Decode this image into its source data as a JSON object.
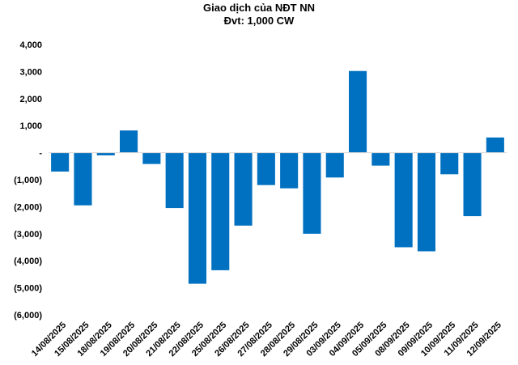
{
  "chart_data": {
    "type": "bar",
    "title": "Giao dịch của NĐT NN",
    "subtitle": "Đvt: 1,000 CW",
    "xlabel": "",
    "ylabel": "",
    "ylim": [
      -6000,
      4000
    ],
    "yticks": [
      4000,
      3000,
      2000,
      1000,
      0,
      -1000,
      -2000,
      -3000,
      -4000,
      -5000,
      -6000
    ],
    "ytick_labels": [
      "4,000",
      "3,000",
      "2,000",
      "1,000",
      "-",
      "(1,000)",
      "(2,000)",
      "(3,000)",
      "(4,000)",
      "(5,000)",
      "(6,000)"
    ],
    "grid": false,
    "legend": "none",
    "bar_color": "#0070C0",
    "categories": [
      "14/08/2025",
      "15/08/2025",
      "18/08/2025",
      "19/08/2025",
      "20/08/2025",
      "21/08/2025",
      "22/08/2025",
      "25/08/2025",
      "26/08/2025",
      "27/08/2025",
      "28/08/2025",
      "29/08/2025",
      "03/09/2025",
      "04/09/2025",
      "05/09/2025",
      "08/09/2025",
      "09/09/2025",
      "10/09/2025",
      "11/09/2025",
      "12/09/2025"
    ],
    "values": [
      -700,
      -1950,
      -100,
      820,
      -420,
      -2050,
      -4850,
      -4350,
      -2700,
      -1200,
      -1320,
      -3000,
      -920,
      3020,
      -480,
      -3500,
      -3650,
      -800,
      -2350,
      560
    ]
  }
}
